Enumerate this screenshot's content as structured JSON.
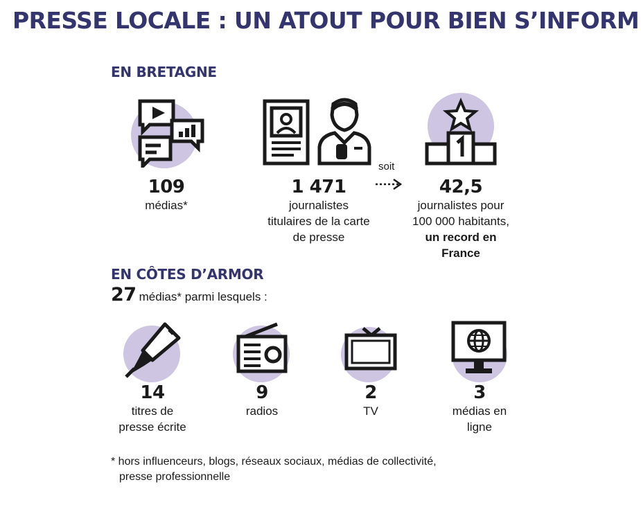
{
  "title": "PRESSE LOCALE : UN ATOUT POUR BIEN S’INFORMER",
  "bretagne": {
    "heading": "EN BRETAGNE",
    "medias": {
      "value": "109",
      "label": "médias*"
    },
    "journalists": {
      "value": "1 471",
      "label_lines": [
        "journalistes",
        "titulaires de la carte",
        "de presse"
      ]
    },
    "connector": "soit",
    "ratio": {
      "value": "42,5",
      "label_lines": [
        "journalistes pour",
        "100 000 habitants,"
      ],
      "bold_lines": [
        "un record en",
        "France"
      ]
    }
  },
  "cotes_armor": {
    "heading": "EN CÔTES D’ARMOR",
    "count": "27",
    "count_text": "médias* parmi lesquels :",
    "items": [
      {
        "value": "14",
        "label_lines": [
          "titres de",
          "presse écrite"
        ]
      },
      {
        "value": "9",
        "label_lines": [
          "radios"
        ]
      },
      {
        "value": "2",
        "label_lines": [
          "TV"
        ]
      },
      {
        "value": "3",
        "label_lines": [
          "médias en",
          "ligne"
        ]
      }
    ]
  },
  "footnote_lines": [
    "* hors influenceurs, blogs, réseaux sociaux, médias de collectivité,",
    "presse professionnelle"
  ],
  "colors": {
    "title": "#34346f",
    "circle": "#cdc5e1",
    "ink": "#1a1a1a"
  },
  "icons": [
    "media-chat-icon",
    "newspaper-icon",
    "journalist-icon",
    "podium-star-icon",
    "fountain-pen-icon",
    "radio-icon",
    "tv-icon",
    "online-globe-icon"
  ]
}
